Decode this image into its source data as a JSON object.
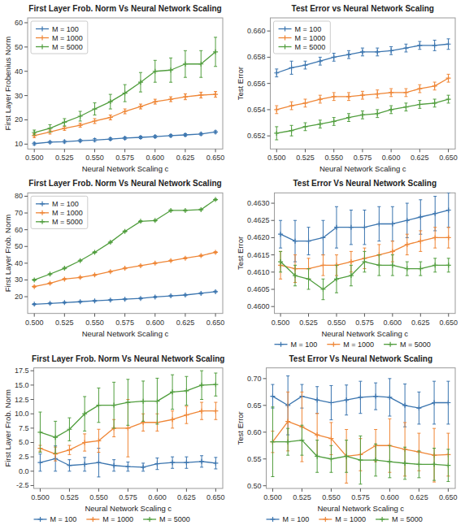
{
  "chart_data": [
    {
      "type": "line",
      "title": "First Layer Frob. Norm Vs Neural Network Scaling",
      "xlabel": "Neural Network Scaling c",
      "ylabel": "First Layer Frobenius Norm",
      "x": [
        0.5,
        0.513,
        0.525,
        0.538,
        0.55,
        0.563,
        0.575,
        0.588,
        0.6,
        0.613,
        0.625,
        0.638,
        0.65
      ],
      "xlim": [
        0.4945,
        0.656
      ],
      "xticks": [
        {
          "value": 0.5,
          "label": "0.500"
        },
        0.525,
        {
          "value": 0.55,
          "label": "0.550"
        },
        0.575,
        {
          "value": 0.6,
          "label": "0.600"
        },
        0.625,
        {
          "value": 0.65,
          "label": "0.650"
        }
      ],
      "ylim": [
        8,
        62
      ],
      "yticks": [
        10,
        20,
        30,
        40,
        50,
        60
      ],
      "grid": false,
      "legend": "upper left",
      "marker": "plus",
      "series": [
        {
          "name": "M = 100",
          "values": [
            10.2,
            10.8,
            11.0,
            11.4,
            11.7,
            12.1,
            12.5,
            12.8,
            13.1,
            13.5,
            13.8,
            14.2,
            15.0
          ],
          "errors": [
            0.5,
            0.4,
            0.5,
            0.5,
            0.6,
            0.5,
            0.5,
            0.5,
            0.5,
            0.5,
            0.5,
            0.5,
            0.5
          ]
        },
        {
          "name": "M = 1000",
          "values": [
            13.5,
            15.0,
            16.5,
            17.8,
            19.5,
            21.0,
            23.5,
            25.5,
            27.5,
            28.5,
            29.5,
            30.2,
            30.5
          ],
          "errors": [
            0.8,
            0.8,
            0.8,
            0.8,
            1.0,
            1.0,
            1.0,
            1.0,
            1.0,
            1.0,
            1.2,
            1.2,
            1.2
          ]
        },
        {
          "name": "M = 5000",
          "values": [
            14.8,
            16.5,
            19.0,
            21.5,
            24.5,
            27.5,
            31.0,
            35.5,
            40.0,
            40.5,
            43.0,
            43.0,
            48.0
          ],
          "errors": [
            1.0,
            1.5,
            1.5,
            2.0,
            2.5,
            3.0,
            3.5,
            4.0,
            4.5,
            5.0,
            5.5,
            5.5,
            6.0
          ]
        }
      ]
    },
    {
      "type": "line",
      "title": "Test Error vs Neural Network Scaling",
      "xlabel": "Neural Network Scaling c",
      "ylabel": "Test Error",
      "x": [
        0.5,
        0.513,
        0.525,
        0.538,
        0.55,
        0.563,
        0.575,
        0.588,
        0.6,
        0.613,
        0.625,
        0.638,
        0.65
      ],
      "xlim": [
        0.4945,
        0.656
      ],
      "xticks": [
        {
          "value": 0.5,
          "label": "0.500"
        },
        0.525,
        {
          "value": 0.55,
          "label": "0.550"
        },
        0.575,
        {
          "value": 0.6,
          "label": "0.600"
        },
        0.625,
        {
          "value": 0.65,
          "label": "0.650"
        }
      ],
      "ylim": [
        0.651,
        0.661
      ],
      "yticks": [
        0.652,
        0.654,
        0.656,
        0.658,
        {
          "value": 0.66,
          "label": "0.660"
        }
      ],
      "grid": false,
      "legend": "upper left",
      "marker": "plus",
      "series": [
        {
          "name": "M = 100",
          "values": [
            0.6568,
            0.6572,
            0.6574,
            0.6577,
            0.658,
            0.6582,
            0.6584,
            0.6584,
            0.6585,
            0.6587,
            0.6589,
            0.6589,
            0.659
          ],
          "errors": [
            0.0003,
            0.0005,
            0.0003,
            0.0003,
            0.0003,
            0.0003,
            0.0003,
            0.0003,
            0.0003,
            0.0003,
            0.0003,
            0.0004,
            0.0004
          ]
        },
        {
          "name": "M = 1000",
          "values": [
            0.654,
            0.6543,
            0.6545,
            0.6548,
            0.655,
            0.655,
            0.6551,
            0.6552,
            0.6553,
            0.6553,
            0.6556,
            0.6558,
            0.6564
          ],
          "errors": [
            0.0003,
            0.0003,
            0.0003,
            0.0003,
            0.0003,
            0.0003,
            0.0003,
            0.0003,
            0.0003,
            0.0003,
            0.0003,
            0.0003,
            0.0003
          ]
        },
        {
          "name": "M = 5000",
          "values": [
            0.6522,
            0.6524,
            0.6527,
            0.6529,
            0.6531,
            0.6534,
            0.6536,
            0.6537,
            0.654,
            0.6542,
            0.6544,
            0.6545,
            0.6548
          ],
          "errors": [
            0.0005,
            0.0004,
            0.0003,
            0.0003,
            0.0003,
            0.0003,
            0.0003,
            0.0003,
            0.0003,
            0.0003,
            0.0003,
            0.0003,
            0.0003
          ]
        }
      ]
    },
    {
      "type": "line",
      "title": "First Layer Frob. Norm Vs Neural Network Scaling",
      "xlabel": "Neural Network Scaling c",
      "ylabel": "First Layer Frob. Norm",
      "x": [
        0.5,
        0.513,
        0.525,
        0.538,
        0.55,
        0.563,
        0.575,
        0.588,
        0.6,
        0.613,
        0.625,
        0.638,
        0.65
      ],
      "xlim": [
        0.4945,
        0.656
      ],
      "xticks": [
        {
          "value": 0.5,
          "label": "0.500"
        },
        0.525,
        {
          "value": 0.55,
          "label": "0.550"
        },
        0.575,
        {
          "value": 0.6,
          "label": "0.600"
        },
        0.625,
        {
          "value": 0.65,
          "label": "0.650"
        }
      ],
      "ylim": [
        10,
        82
      ],
      "yticks": [
        20,
        30,
        40,
        50,
        60,
        70,
        80
      ],
      "grid": false,
      "legend": "upper left",
      "marker": "plus",
      "series": [
        {
          "name": "M = 100",
          "values": [
            15.5,
            16.0,
            16.5,
            17.0,
            17.5,
            18.0,
            18.5,
            19.0,
            19.8,
            20.5,
            21.0,
            22.0,
            23.0
          ],
          "errors": [
            0.4,
            0.4,
            0.4,
            0.4,
            0.4,
            0.4,
            0.4,
            0.4,
            0.4,
            0.4,
            0.4,
            0.4,
            0.4
          ]
        },
        {
          "name": "M = 1000",
          "values": [
            26.0,
            28.0,
            30.5,
            31.5,
            33.0,
            35.0,
            37.0,
            38.5,
            40.0,
            41.5,
            43.0,
            44.5,
            46.5
          ],
          "errors": [
            0.4,
            0.4,
            0.4,
            0.4,
            0.4,
            0.4,
            0.4,
            0.4,
            0.4,
            0.4,
            0.4,
            0.4,
            0.4
          ]
        },
        {
          "name": "M = 5000",
          "values": [
            30.0,
            33.5,
            37.0,
            41.5,
            46.5,
            52.5,
            59.0,
            65.0,
            65.5,
            71.5,
            71.5,
            72.0,
            78.0
          ],
          "errors": [
            0.4,
            0.4,
            0.4,
            0.4,
            0.4,
            0.4,
            0.4,
            0.4,
            0.4,
            0.4,
            0.4,
            0.4,
            0.4
          ]
        }
      ]
    },
    {
      "type": "line",
      "title": "Test Error Vs Neural Network Scaling",
      "xlabel": "Neural Network Scaling c",
      "ylabel": "Test Error",
      "x": [
        0.5,
        0.513,
        0.525,
        0.538,
        0.55,
        0.563,
        0.575,
        0.588,
        0.6,
        0.613,
        0.625,
        0.638,
        0.65
      ],
      "xlim": [
        0.4945,
        0.656
      ],
      "xticks": [
        {
          "value": 0.5,
          "label": "0.500"
        },
        0.525,
        {
          "value": 0.55,
          "label": "0.550"
        },
        0.575,
        {
          "value": 0.6,
          "label": "0.600"
        },
        0.625,
        {
          "value": 0.65,
          "label": "0.650"
        }
      ],
      "ylim": [
        0.4598,
        0.4633
      ],
      "yticks": [
        {
          "value": 0.46,
          "label": "0.4600"
        },
        0.4605,
        {
          "value": 0.461,
          "label": "0.4610"
        },
        0.4615,
        {
          "value": 0.462,
          "label": "0.4620"
        },
        0.4625,
        {
          "value": 0.463,
          "label": "0.4630"
        }
      ],
      "grid": false,
      "legend": "upper left",
      "marker": "plus",
      "series": [
        {
          "name": "M = 100",
          "values": [
            0.4621,
            0.4619,
            0.4619,
            0.462,
            0.4623,
            0.4623,
            0.4623,
            0.4624,
            0.4624,
            0.4625,
            0.4626,
            0.4627,
            0.4628
          ],
          "errors": [
            0.0004,
            0.0006,
            0.0004,
            0.0005,
            0.0006,
            0.0005,
            0.0005,
            0.0005,
            0.0005,
            0.0005,
            0.0005,
            0.0005,
            0.0005
          ]
        },
        {
          "name": "M = 1000",
          "values": [
            0.4612,
            0.4611,
            0.4611,
            0.4612,
            0.4612,
            0.4613,
            0.4614,
            0.4615,
            0.4616,
            0.4618,
            0.4619,
            0.462,
            0.462
          ],
          "errors": [
            0.0004,
            0.0004,
            0.0003,
            0.0003,
            0.0003,
            0.0003,
            0.0003,
            0.0003,
            0.0003,
            0.0003,
            0.0003,
            0.0003,
            0.0003
          ]
        },
        {
          "name": "M = 5000",
          "values": [
            0.4613,
            0.4609,
            0.4608,
            0.4605,
            0.4608,
            0.4609,
            0.4613,
            0.4612,
            0.4612,
            0.4611,
            0.4611,
            0.4612,
            0.4612
          ],
          "errors": [
            0.0003,
            0.0003,
            0.0003,
            0.0003,
            0.0004,
            0.0003,
            0.0003,
            0.0003,
            0.0003,
            0.0002,
            0.0002,
            0.0002,
            0.0002
          ]
        }
      ]
    },
    {
      "type": "line",
      "title": "First Layer Frob. Norm Vs Neural Network Scaling",
      "xlabel": "Neural Network Scaling c",
      "ylabel": "First Layer Frob. Norm",
      "x": [
        0.5,
        0.513,
        0.525,
        0.538,
        0.55,
        0.563,
        0.575,
        0.588,
        0.6,
        0.613,
        0.625,
        0.638,
        0.65
      ],
      "xlim": [
        0.4945,
        0.656
      ],
      "xticks": [
        {
          "value": 0.5,
          "label": "0.500"
        },
        0.525,
        {
          "value": 0.55,
          "label": "0.550"
        },
        0.575,
        {
          "value": 0.6,
          "label": "0.600"
        },
        0.625,
        {
          "value": 0.65,
          "label": "0.650"
        }
      ],
      "ylim": [
        -3,
        18
      ],
      "yticks": [
        -2.5,
        {
          "value": 0,
          "label": "0.0"
        },
        2.5,
        {
          "value": 5,
          "label": "5.0"
        },
        7.5,
        {
          "value": 10,
          "label": "10.0"
        },
        12.5,
        {
          "value": 15,
          "label": "15.0"
        },
        17.5
      ],
      "grid": false,
      "legend": "upper left",
      "marker": "plus",
      "series": [
        {
          "name": "M = 100",
          "values": [
            1.5,
            2.2,
            1.0,
            1.2,
            1.5,
            1.0,
            0.8,
            0.7,
            1.3,
            1.5,
            1.5,
            1.7,
            1.4
          ],
          "errors": [
            1.5,
            2.2,
            1.0,
            1.2,
            2.5,
            1.0,
            0.8,
            0.7,
            1.0,
            1.0,
            1.0,
            1.0,
            1.0
          ]
        },
        {
          "name": "M = 1000",
          "values": [
            4.0,
            3.0,
            3.7,
            5.0,
            5.3,
            7.5,
            7.5,
            8.5,
            8.5,
            9.0,
            9.8,
            10.5,
            10.5
          ],
          "errors": [
            0.5,
            1.2,
            0.8,
            1.5,
            2.0,
            1.5,
            5.0,
            1.5,
            1.5,
            1.5,
            1.5,
            1.5,
            1.5
          ]
        },
        {
          "name": "M = 5000",
          "values": [
            6.8,
            5.9,
            7.3,
            10.0,
            11.5,
            11.5,
            12.0,
            12.2,
            12.2,
            13.8,
            14.0,
            15.0,
            15.1
          ],
          "errors": [
            3.5,
            2.8,
            2.0,
            3.0,
            3.0,
            4.0,
            4.0,
            3.5,
            4.0,
            3.0,
            2.5,
            2.5,
            2.0
          ]
        }
      ]
    },
    {
      "type": "line",
      "title": "Test Error Vs Neural Network Scaling",
      "xlabel": "Neural Network Scaling c",
      "ylabel": "Test Error",
      "x": [
        0.5,
        0.513,
        0.525,
        0.538,
        0.55,
        0.563,
        0.575,
        0.588,
        0.6,
        0.613,
        0.625,
        0.638,
        0.65
      ],
      "xlim": [
        0.4945,
        0.656
      ],
      "xticks": [
        {
          "value": 0.5,
          "label": "0.500"
        },
        0.525,
        {
          "value": 0.55,
          "label": "0.550"
        },
        0.575,
        {
          "value": 0.6,
          "label": "0.600"
        },
        0.625,
        {
          "value": 0.65,
          "label": "0.650"
        }
      ],
      "ylim": [
        0.495,
        0.72
      ],
      "yticks": [
        {
          "value": 0.5,
          "label": "0.50"
        },
        0.55,
        {
          "value": 0.6,
          "label": "0.60"
        },
        0.65,
        {
          "value": 0.7,
          "label": "0.70"
        }
      ],
      "grid": false,
      "legend": "lower left",
      "marker": "plus",
      "series": [
        {
          "name": "M = 100",
          "values": [
            0.667,
            0.65,
            0.667,
            0.66,
            0.655,
            0.66,
            0.665,
            0.667,
            0.665,
            0.65,
            0.645,
            0.655,
            0.655
          ],
          "errors": [
            0.022,
            0.055,
            0.022,
            0.025,
            0.032,
            0.028,
            0.03,
            0.025,
            0.035,
            0.04,
            0.03,
            0.04,
            0.04
          ]
        },
        {
          "name": "M = 1000",
          "values": [
            0.582,
            0.62,
            0.61,
            0.595,
            0.588,
            0.555,
            0.558,
            0.575,
            0.575,
            0.568,
            0.563,
            0.557,
            0.558
          ],
          "errors": [
            0.02,
            0.055,
            0.065,
            0.04,
            0.03,
            0.05,
            0.03,
            0.03,
            0.05,
            0.05,
            0.035,
            0.05,
            0.04
          ]
        },
        {
          "name": "M = 5000",
          "values": [
            0.582,
            0.582,
            0.585,
            0.555,
            0.55,
            0.555,
            0.548,
            0.548,
            0.545,
            0.542,
            0.54,
            0.54,
            0.538
          ],
          "errors": [
            0.065,
            0.025,
            0.028,
            0.03,
            0.025,
            0.03,
            0.045,
            0.03,
            0.03,
            0.03,
            0.025,
            0.03,
            0.03
          ]
        }
      ]
    }
  ]
}
